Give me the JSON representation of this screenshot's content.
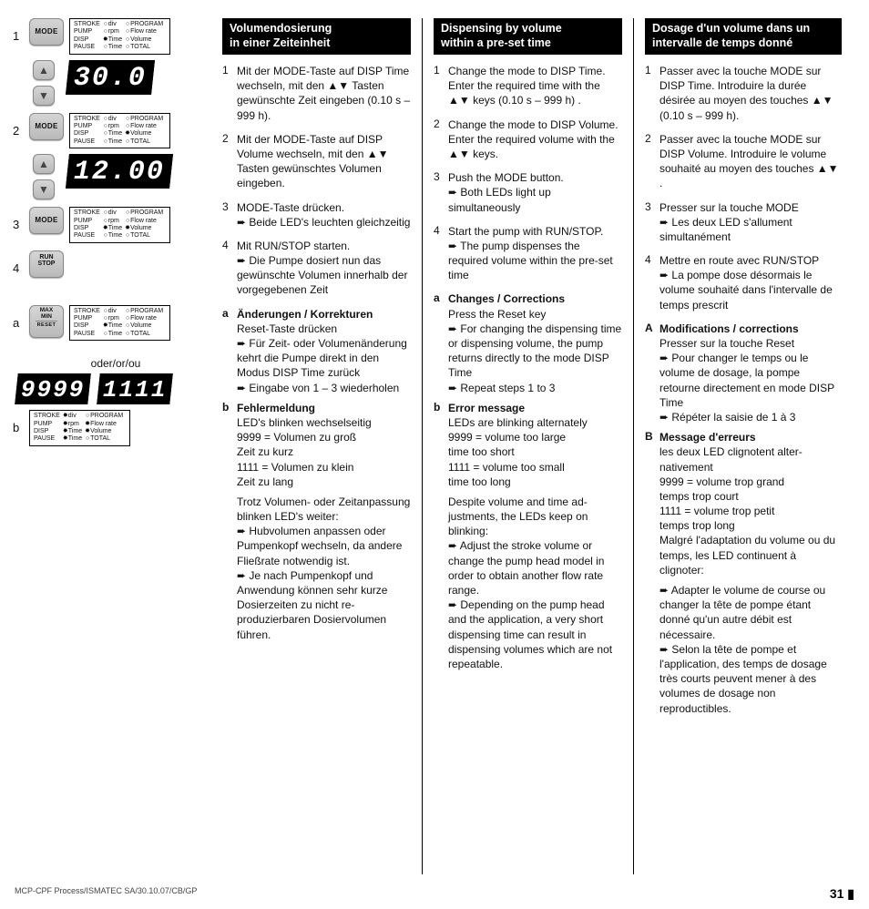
{
  "footer_left": "MCP-CPF Process/ISMATEC SA/30.10.07/CB/GP",
  "footer_page": "31",
  "left": {
    "or_label": "oder/or/ou",
    "labels": {
      "mode": "MODE",
      "run": "RUN\nSTOP",
      "reset_top": "MAX\nMIN",
      "reset_sub": "RESET"
    },
    "lcd1": "30.0",
    "lcd2": "12.00",
    "err1": "9999",
    "err2": "1111",
    "row_labels": [
      "1",
      "2",
      "3",
      "4",
      "a",
      "b"
    ],
    "led_table": {
      "rows": [
        [
          "STROKE",
          "div",
          "PROGRAM"
        ],
        [
          "PUMP",
          "rpm",
          "Flow rate"
        ],
        [
          "DISP",
          "Time",
          "Volume"
        ],
        [
          "PAUSE",
          "Time",
          "TOTAL"
        ]
      ],
      "variants": {
        "p1": [
          [
            "o",
            "o",
            "o"
          ],
          [
            "o",
            "o",
            "o"
          ],
          [
            "o",
            "s",
            "o"
          ],
          [
            "o",
            "o",
            "o"
          ]
        ],
        "p2": [
          [
            "o",
            "o",
            "o"
          ],
          [
            "o",
            "o",
            "o"
          ],
          [
            "o",
            "o",
            "s"
          ],
          [
            "o",
            "o",
            "o"
          ]
        ],
        "p3": [
          [
            "o",
            "o",
            "o"
          ],
          [
            "o",
            "o",
            "o"
          ],
          [
            "o",
            "s",
            "s"
          ],
          [
            "o",
            "o",
            "o"
          ]
        ],
        "pa": [
          [
            "o",
            "o",
            "o"
          ],
          [
            "o",
            "o",
            "o"
          ],
          [
            "o",
            "s",
            "o"
          ],
          [
            "o",
            "o",
            "o"
          ]
        ],
        "pb": [
          [
            "o",
            "s",
            "o"
          ],
          [
            "o",
            "s",
            "s"
          ],
          [
            "o",
            "s",
            "s"
          ],
          [
            "o",
            "s",
            "o"
          ]
        ]
      }
    }
  },
  "de": {
    "title": "Volumendosierung\nin einer Zeiteinheit",
    "steps": [
      {
        "n": "1",
        "t": "Mit der MODE-Taste auf DISP Time wechseln, mit den ▲▼ Tasten gewünschte Zeit eingeben (0.10 s – 999 h)."
      },
      {
        "n": "2",
        "t": "Mit der MODE-Taste auf DISP Volume wechseln, mit den ▲▼ Tasten gewünschtes Volumen eingeben."
      },
      {
        "n": "3",
        "t": "MODE-Taste drücken.\n➨ Beide LED's leuchten gleichzeitig"
      },
      {
        "n": "4",
        "t": "Mit RUN/STOP starten.\n➨ Die Pumpe dosiert nun das gewünschte Volumen inner­halb der vorgegebenen Zeit"
      }
    ],
    "subA_title": "Änderungen / Korrekturen",
    "subA": "Reset-Taste drücken\n➨ Für Zeit- oder Volumenän­derung kehrt die Pumpe direkt in den Modus DISP Time zu­rück\n➨ Eingabe von 1 – 3 wieder­holen",
    "subB_title": "Fehlermeldung",
    "subB": "LED's blinken wechselseitig\n9999 =  Volumen zu groß\n              Zeit zu kurz\n1111 =  Volumen zu klein\n              Zeit zu lang",
    "tail": "Trotz Volumen- oder Zeitan­passung blinken LED's weiter:\n➨ Hubvolumen anpassen oder Pumpenkopf wechseln, da an­dere Fließrate notwendig ist.\n➨ Je nach Pumpenkopf und Anwendung können sehr kurze Dosierzeiten zu nicht re­produzierbaren Dosiervolumen führen."
  },
  "en": {
    "title": "Dispensing by volume\nwithin a pre-set time",
    "steps": [
      {
        "n": "1",
        "t": "Change the mode to DISP Time. Enter the required time with the ▲▼ keys (0.10 s – 999 h) ."
      },
      {
        "n": "2",
        "t": "Change the mode to DISP Volume. Enter the required vo­lume with the ▲▼ keys."
      },
      {
        "n": "3",
        "t": "Push the MODE button.\n➨ Both LEDs light up simultaneously"
      },
      {
        "n": "4",
        "t": "Start the pump with RUN/STOP.\n➨ The pump dispenses the required volume within the pre-set time"
      }
    ],
    "subA_title": "Changes / Corrections",
    "subA": "Press the Reset key\n➨ For changing the dispensing time or dispensing volume, the pump returns directly to the mode DISP Time\n➨ Repeat steps 1 to 3",
    "subB_title": "Error message",
    "subB": "LEDs are blinking alternately\n9999 =  volume too large\n              time too short\n1111 =  volume too small\n              time too long",
    "tail": "Despite volume and time ad­justments, the LEDs keep on blinking:\n➨ Adjust the stroke volume or change the pump head model in order to obtain another flow rate range.\n➨ Depending on the pump head and the application, a very short dispensing time can result in dispensing volumes which are not repeatable."
  },
  "fr": {
    "title": "Dosage d'un volume dans un intervalle de temps donné",
    "steps": [
      {
        "n": "1",
        "t": "Passer avec la touche MODE sur DISP Time. Introduire la du­rée désirée au moyen des touches ▲▼ (0.10 s – 999 h)."
      },
      {
        "n": "2",
        "t": "Passer avec la touche MODE sur DISP Volume. Introduire le volume souhaité au moyen des touches ▲▼ ."
      },
      {
        "n": "3",
        "t": "Presser sur la touche MODE\n➨ Les deux LED s'allument simultanément"
      },
      {
        "n": "4",
        "t": "Mettre en route avec RUN/STOP\n➨ La pompe dose désormais le volume souhaité dans l'intervalle de temps prescrit"
      }
    ],
    "subA_title": "Modifications / corrections",
    "subA": "Presser sur la touche Reset\n➨ Pour changer le temps ou le volume de dosage, la pompe retourne directement en mode DISP Time\n➨ Répéter la saisie de 1 à 3",
    "subB_title": "Message d'erreurs",
    "subB": "les deux LED clignotent alter­nativement\n9999 =  volume trop grand\n              temps trop court\n1111 =  volume trop petit\n              temps trop long\nMalgré l'adaptation du volume ou du temps, les LED continu­ent à clignoter:",
    "tail": "➨ Adapter le volume de course ou changer la tête de pompe étant donné qu'un aut­re débit est nécessaire.\n➨ Selon la tête de pompe et l'application, des temps de do­sage très courts peuvent mener à des volumes de dosage non reproductibles."
  }
}
